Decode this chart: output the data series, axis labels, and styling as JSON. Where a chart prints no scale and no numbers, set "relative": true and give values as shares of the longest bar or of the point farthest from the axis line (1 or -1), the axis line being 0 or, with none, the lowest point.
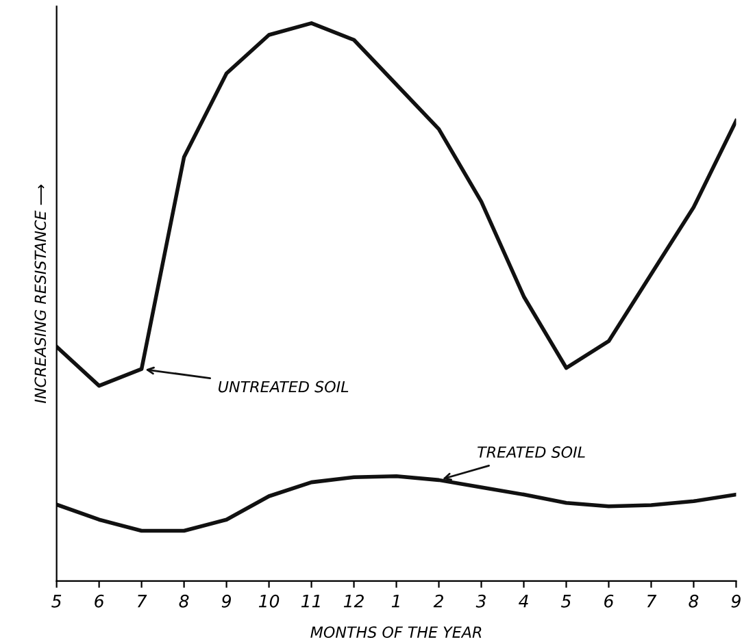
{
  "chart_data": {
    "type": "line",
    "relative": true,
    "xlabel": "MONTHS OF THE YEAR",
    "ylabel": "INCREASING RESISTANCE ⟶",
    "categories": [
      "5",
      "6",
      "7",
      "8",
      "9",
      "10",
      "11",
      "12",
      "1",
      "2",
      "3",
      "4",
      "5",
      "6",
      "7",
      "8",
      "9"
    ],
    "grid": false,
    "marker": "none",
    "line_style": "solid",
    "series": [
      {
        "color": "#111111",
        "values": [
          0.42,
          0.35,
          0.38,
          0.76,
          0.91,
          0.979,
          1,
          0.97,
          0.89,
          0.81,
          0.68,
          0.51,
          0.382,
          0.43,
          0.55,
          0.67,
          0.825
        ]
      },
      {
        "color": "#111111",
        "values": [
          0.137,
          0.11,
          0.09,
          0.09,
          0.11,
          0.152,
          0.177,
          0.186,
          0.188,
          0.181,
          0.168,
          0.155,
          0.14,
          0.134,
          0.136,
          0.143,
          0.155
        ]
      }
    ],
    "annotations": [
      {
        "text": "UNTREATED SOIL",
        "x": "7",
        "y": 0.38
      },
      {
        "text": "TREATED SOIL",
        "x": "2",
        "y": 0.181
      }
    ]
  }
}
